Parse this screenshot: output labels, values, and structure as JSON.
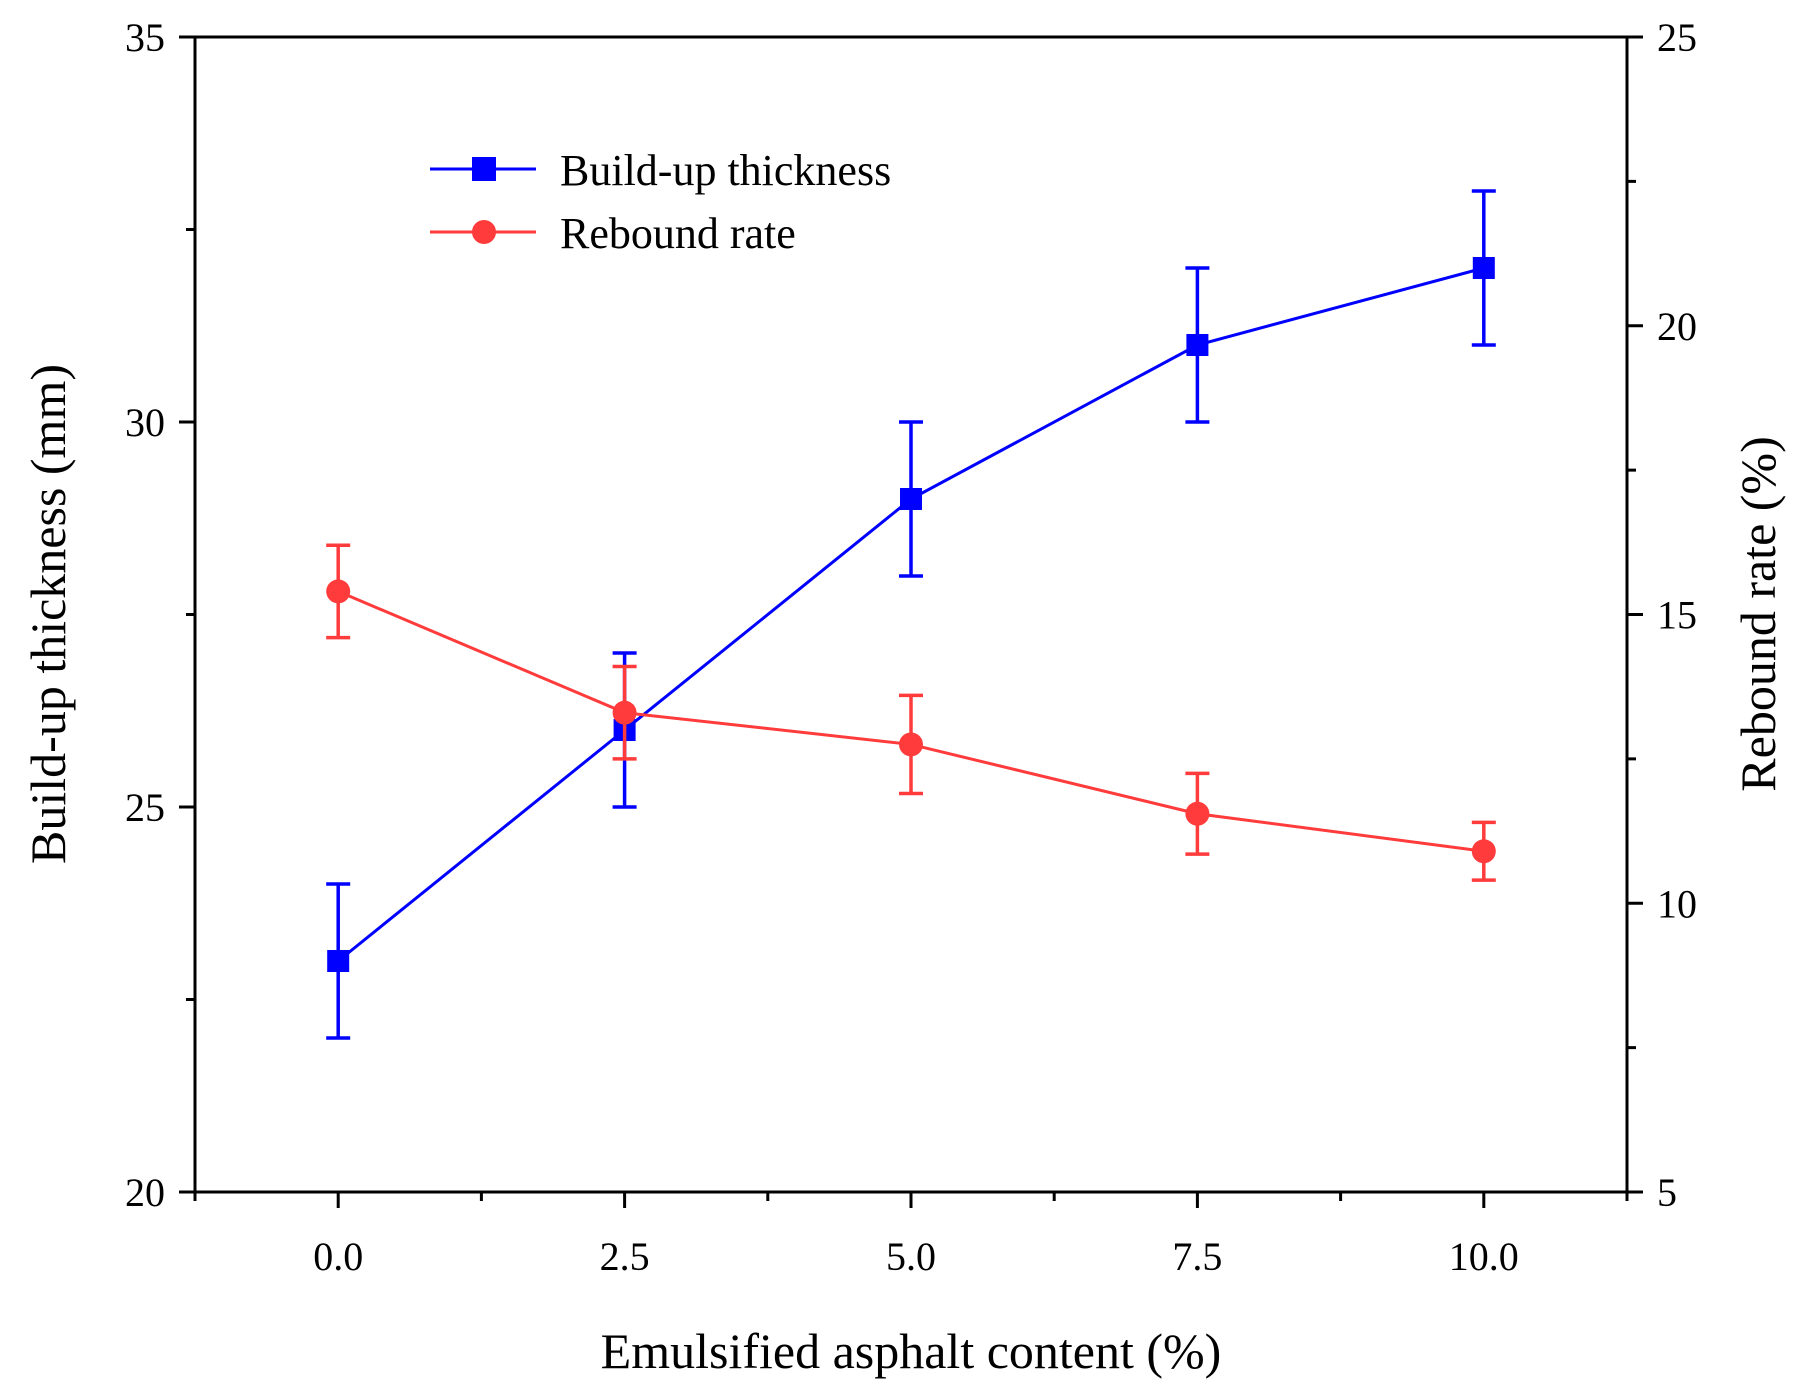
{
  "chart_data": {
    "type": "line",
    "title": "",
    "xlabel": "Emulsified asphalt content (%)",
    "ylabel": "Build-up thickness (mm)",
    "y2label": "Rebound rate (%)",
    "x": [
      0.0,
      2.5,
      5.0,
      7.5,
      10.0
    ],
    "xlim": [
      -1.25,
      11.25
    ],
    "ylim": [
      20,
      35
    ],
    "y2lim": [
      5,
      25
    ],
    "xticks": [
      "0.0",
      "2.5",
      "5.0",
      "7.5",
      "10.0"
    ],
    "yticks": [
      "20",
      "25",
      "30",
      "35"
    ],
    "y2ticks": [
      "5",
      "10",
      "15",
      "20",
      "25"
    ],
    "grid": false,
    "legend_position": "top-left",
    "series": [
      {
        "name": "Build-up thickness",
        "axis": "left",
        "color": "#0000ff",
        "marker": "square",
        "values": [
          23.0,
          26.0,
          29.0,
          31.0,
          32.0
        ],
        "errors": [
          1.0,
          1.0,
          1.0,
          1.0,
          1.0
        ]
      },
      {
        "name": "Rebound rate",
        "axis": "right",
        "color": "#ff3b3b",
        "marker": "circle",
        "values": [
          15.4,
          13.3,
          12.75,
          11.55,
          10.9
        ],
        "errors": [
          0.8,
          0.8,
          0.85,
          0.7,
          0.5
        ]
      }
    ]
  }
}
